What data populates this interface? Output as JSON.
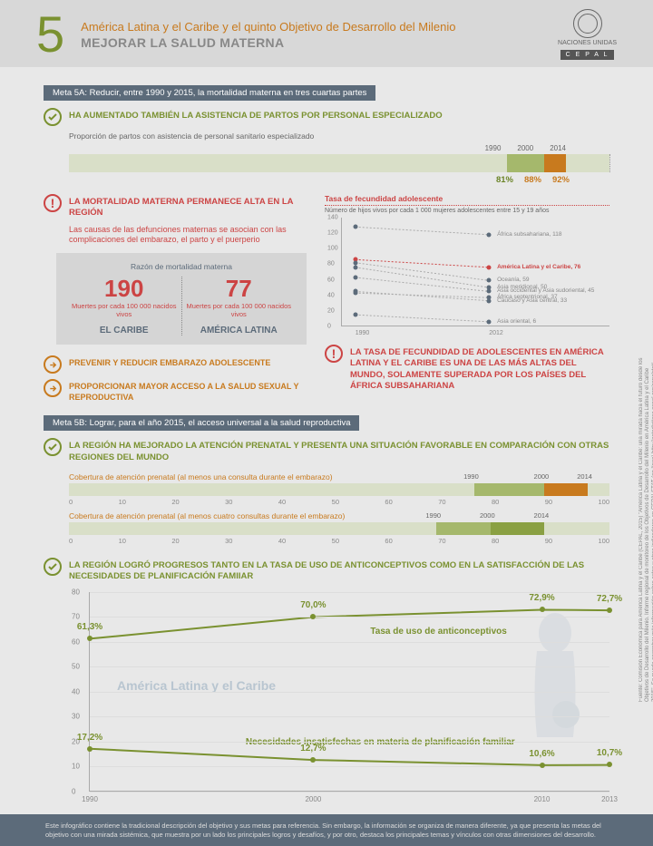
{
  "header": {
    "number": "5",
    "title": "América Latina y el Caribe y el quinto Objetivo de Desarrollo del Milenio",
    "subtitle": "MEJORAR LA SALUD MATERNA",
    "logo_label": "NACIONES UNIDAS",
    "cepal": "C E P A L"
  },
  "meta5a": "Meta 5A: Reducir, entre 1990 y 2015, la mortalidad materna en tres cuartas partes",
  "partos": {
    "title": "HA AUMENTADO TAMBIÉN LA ASISTENCIA DE PARTOS POR PERSONAL ESPECIALIZADO",
    "subtitle": "Proporción de partos con asistencia de personal sanitario especializado",
    "years": [
      "1990",
      "2000",
      "2014"
    ],
    "values": [
      "81%",
      "88%",
      "92%"
    ],
    "positions_pct": [
      81,
      88,
      92
    ],
    "colors": [
      "#6b8427",
      "#c87a1e",
      "#c87a1e"
    ]
  },
  "mortalidad": {
    "title": "LA MORTALIDAD MATERNA PERMANECE ALTA EN LA REGIÓN",
    "causes": "Las causas de las defunciones maternas se asocian con las complicaciones del embarazo, el parto y el puerperio",
    "ratio_title": "Razón de mortalidad materna",
    "caribe_num": "190",
    "caribe_sub": "Muertes por cada 100 000 nacidos vivos",
    "caribe_region": "EL CARIBE",
    "al_num": "77",
    "al_sub": "Muertes por cada 100 000 nacidos vivos",
    "al_region": "AMÉRICA LATINA"
  },
  "recs": {
    "r1": "PREVENIR Y REDUCIR EMBARAZO ADOLESCENTE",
    "r2": "PROPORCIONAR MAYOR ACCESO A LA SALUD SEXUAL Y REPRODUCTIVA"
  },
  "fecundidad_chart": {
    "title": "Tasa de fecundidad adolescente",
    "subtitle": "Número de hijos vivos por cada 1 000 mujeres adolescentes entre 15 y 19 años",
    "yticks": [
      0,
      20,
      40,
      60,
      80,
      100,
      120,
      140
    ],
    "xlabels": [
      "1990",
      "2012"
    ],
    "series": [
      {
        "label": "África subsahariana, 118",
        "y1": 128,
        "y2": 118,
        "color": "#5c6b7a"
      },
      {
        "label": "América Latina y el Caribe, 76",
        "y1": 86,
        "y2": 76,
        "color": "#c44"
      },
      {
        "label": "Oceanía, 59",
        "y1": 82,
        "y2": 59,
        "color": "#5c6b7a"
      },
      {
        "label": "Asia meridional, 50",
        "y1": 76,
        "y2": 50,
        "color": "#5c6b7a"
      },
      {
        "label": "Asia occidental y Asia sudoriental, 45",
        "y1": 63,
        "y2": 45,
        "color": "#5c6b7a"
      },
      {
        "label": "África septentrional, 37",
        "y1": 43,
        "y2": 37,
        "color": "#5c6b7a"
      },
      {
        "label": "Caucaso y Asia central, 33",
        "y1": 45,
        "y2": 33,
        "color": "#5c6b7a"
      },
      {
        "label": "Asia oriental, 6",
        "y1": 15,
        "y2": 6,
        "color": "#5c6b7a"
      }
    ]
  },
  "fecundidad_alert": "LA TASA DE FECUNDIDAD DE ADOLESCENTES EN AMÉRICA LATINA Y EL CARIBE ES UNA DE LAS MÁS ALTAS DEL MUNDO, SOLAMENTE SUPERADA POR LOS PAÍSES DEL ÁFRICA SUBSAHARIANA",
  "meta5b": "Meta 5B: Lograr, para el año 2015, el acceso universal a la salud reproductiva",
  "prenatal_title": "LA REGIÓN HA MEJORADO LA ATENCIÓN PRENATAL Y PRESENTA UNA SITUACIÓN FAVORABLE EN COMPARACIÓN CON OTRAS REGIONES DEL MUNDO",
  "cov1": {
    "title": "Cobertura de atención prenatal (al menos una consulta durante el embarazo)",
    "scale": [
      "0",
      "10",
      "20",
      "30",
      "40",
      "50",
      "60",
      "70",
      "80",
      "90",
      "100"
    ],
    "years": [
      "1990",
      "2000",
      "2014"
    ],
    "year_pos": [
      75,
      88,
      96
    ],
    "fills": [
      {
        "from": 0,
        "to": 75,
        "color": "#d9dfc8"
      },
      {
        "from": 75,
        "to": 88,
        "color": "#a5b86c"
      },
      {
        "from": 88,
        "to": 96,
        "color": "#c87a1e"
      }
    ]
  },
  "cov2": {
    "title": "Cobertura de atención prenatal (al menos cuatro consultas durante el embarazo)",
    "scale": [
      "0",
      "10",
      "20",
      "30",
      "40",
      "50",
      "60",
      "70",
      "80",
      "90",
      "100"
    ],
    "years": [
      "1990",
      "2000",
      "2014"
    ],
    "year_pos": [
      68,
      78,
      88
    ],
    "fills": [
      {
        "from": 0,
        "to": 68,
        "color": "#d9dfc8"
      },
      {
        "from": 68,
        "to": 78,
        "color": "#a5b86c"
      },
      {
        "from": 78,
        "to": 88,
        "color": "#8aa043"
      }
    ]
  },
  "anticonceptivos_title": "LA REGIÓN LOGRÓ PROGRESOS TANTO EN LA TASA DE USO DE ANTICONCEPTIVOS  COMO EN LA SATISFACCIÓN DE LAS NECESIDADES DE PLANIFICACIÓN FAMIIAR",
  "big_chart": {
    "yticks": [
      0,
      10,
      20,
      30,
      40,
      50,
      60,
      70,
      80
    ],
    "xlabels": [
      "1990",
      "2000",
      "2010",
      "2013"
    ],
    "xpos_pct": [
      0,
      43,
      87,
      100
    ],
    "region_wm": "América Latina y el Caribe",
    "s1_title": "Tasa de uso de anticonceptivos",
    "s1_vals": [
      "61,3%",
      "70,0%",
      "72,9%",
      "72,7%"
    ],
    "s1_y": [
      61.3,
      70.0,
      72.9,
      72.7
    ],
    "s1_color": "#7a9130",
    "s2_title": "Necesidades insatisfechas en materia de planificación familiar",
    "s2_vals": [
      "17,2%",
      "12,7%",
      "10,6%",
      "10,7%"
    ],
    "s2_y": [
      17.2,
      12.7,
      10.6,
      10.7
    ],
    "s2_color": "#7a9130"
  },
  "side_credits": "Fuente: Comisión Económica para América Latina y el Caribe (CEPAL, 2015) \"América Latina y el Caribe: una mirada hacia el futuro desde los Objetivos de Desarrollo del Milenio. Informe regional de monitoreo de los Objetivos de Desarrollo del Milenio en América Latina y el Caribe 2015\". Se puede encontrar más información sobre estos y otros indicadores en CEPALSTAT (en línea) http://estadisticas.cepal.org/cepalstat/. Algunos elementos gráficos incluidos en esta lámina han sido diseñados por Freepik.com",
  "footer": "Este infográfico contiene la tradicional descripción del objetivo y sus metas para referencia. Sin embargo, la información se organiza de manera diferente, ya que presenta las metas del objetivo con una mirada sistémica, que muestra por un lado los principales logros y desafíos, y por otro, destaca los principales temas y vínculos con otras dimensiones del desarrollo."
}
